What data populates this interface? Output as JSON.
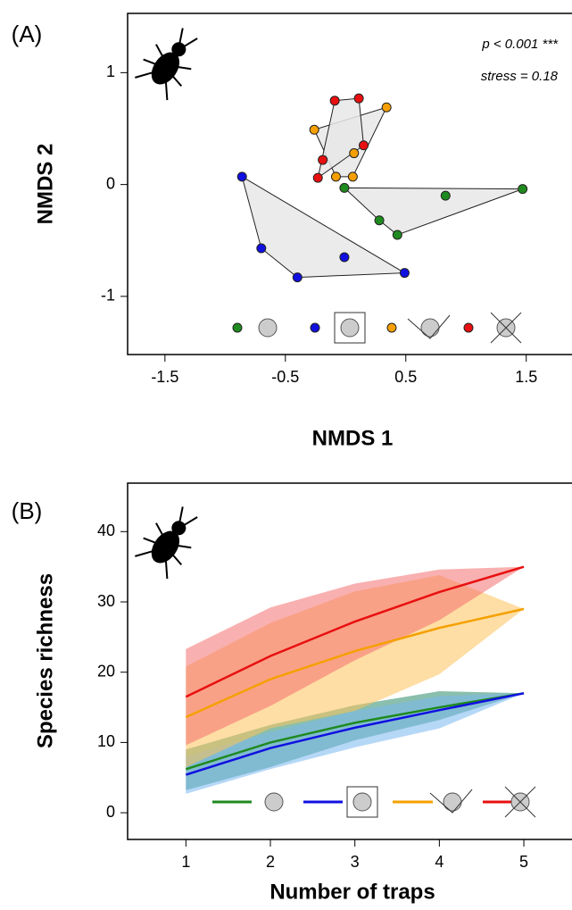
{
  "chart_data": [
    {
      "type": "scatter",
      "label": "(A)",
      "xlabel": "NMDS 1",
      "ylabel": "NMDS 2",
      "annotations": [
        "p < 0.001 ***",
        "stress = 0.18"
      ],
      "xlim": [
        -1.81,
        1.88
      ],
      "ylim": [
        -1.52,
        1.53
      ],
      "xticks": [
        -1.5,
        -0.5,
        0.5,
        1.5
      ],
      "yticks": [
        -1,
        0,
        1
      ],
      "series": [
        {
          "color": "#1f8a1f",
          "x": [
            -0.01,
            0.28,
            0.43,
            0.83,
            1.47
          ],
          "y": [
            -0.03,
            -0.32,
            -0.45,
            -0.1,
            -0.04
          ]
        },
        {
          "color": "#1010e0",
          "x": [
            -0.86,
            -0.7,
            -0.4,
            -0.01,
            0.49
          ],
          "y": [
            0.07,
            -0.57,
            -0.83,
            -0.65,
            -0.79
          ]
        },
        {
          "color": "#f5a000",
          "x": [
            -0.26,
            0.34,
            0.07,
            0.06,
            -0.08
          ],
          "y": [
            0.49,
            0.69,
            0.28,
            0.07,
            0.07
          ]
        },
        {
          "color": "#e81010",
          "x": [
            -0.09,
            0.11,
            0.15,
            -0.19,
            -0.23
          ],
          "y": [
            0.75,
            0.77,
            0.35,
            0.22,
            0.06
          ]
        }
      ]
    },
    {
      "type": "line",
      "label": "(B)",
      "xlabel": "Number of traps",
      "ylabel": "Species richness",
      "xlim": [
        0.31,
        5.57
      ],
      "ylim": [
        -3.8,
        46.9
      ],
      "xticks": [
        1,
        2,
        3,
        4,
        5
      ],
      "yticks": [
        0,
        10,
        20,
        30,
        40
      ],
      "x": [
        1,
        2,
        3,
        4,
        5
      ],
      "series": [
        {
          "color": "#1f8a1f",
          "band_color": "#2a8a6a",
          "values": [
            6.2,
            10,
            12.8,
            15,
            17
          ],
          "upper": [
            9,
            12.5,
            15.3,
            17.3,
            17
          ],
          "lower": [
            3.2,
            6.5,
            10.3,
            13.2,
            17
          ]
        },
        {
          "color": "#1010e0",
          "band_color": "#7ab8f0",
          "values": [
            5.4,
            9.2,
            12.1,
            14.6,
            17
          ],
          "upper": [
            8,
            11.5,
            14.5,
            16.6,
            17
          ],
          "lower": [
            2.7,
            6.2,
            9.3,
            12,
            17
          ]
        },
        {
          "color": "#f5a000",
          "band_color": "#fdc25a",
          "values": [
            13.6,
            19,
            23,
            26.3,
            29
          ],
          "upper": [
            20.8,
            27,
            31.5,
            33.8,
            29
          ],
          "lower": [
            6.5,
            12,
            14.5,
            19.7,
            29
          ]
        },
        {
          "color": "#e81010",
          "band_color": "#f47070",
          "values": [
            16.5,
            22.3,
            27.2,
            31.4,
            35
          ],
          "upper": [
            23.3,
            29.2,
            32.6,
            34.6,
            35
          ],
          "lower": [
            9.6,
            15.2,
            21.7,
            27.4,
            35
          ]
        }
      ]
    }
  ]
}
